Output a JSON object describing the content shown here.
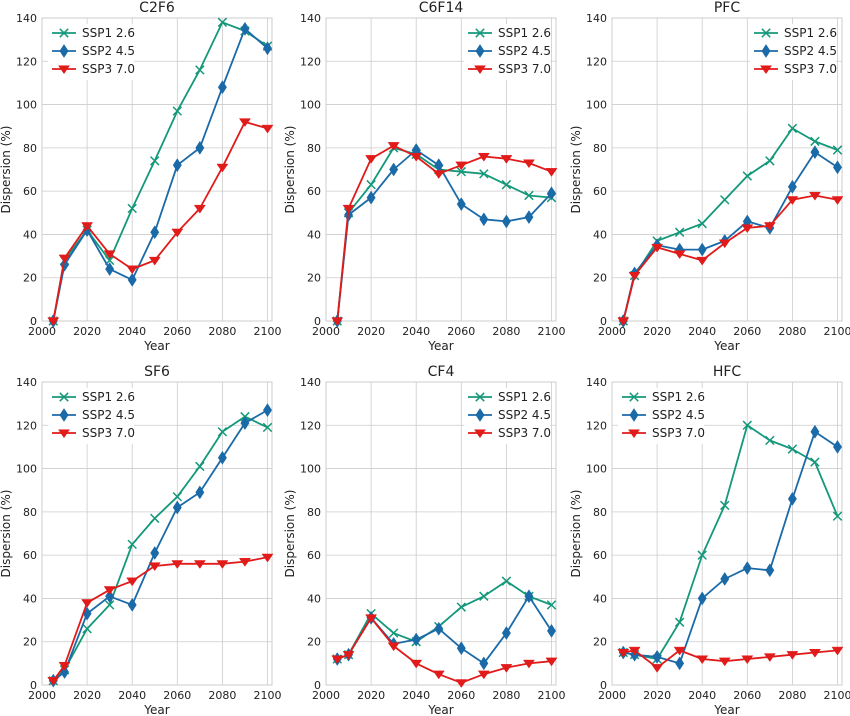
{
  "chart_data": [
    {
      "type": "line",
      "title": "C2F6",
      "xlabel": "Year",
      "ylabel": "Dispersion (%)",
      "xlim": [
        2000,
        2102
      ],
      "ylim": [
        0,
        140
      ],
      "xticks": [
        2000,
        2020,
        2040,
        2060,
        2080,
        2100
      ],
      "yticks": [
        0,
        20,
        40,
        60,
        80,
        100,
        120,
        140
      ],
      "grid": true,
      "legend": "top-left",
      "x": [
        2005,
        2010,
        2020,
        2030,
        2040,
        2050,
        2060,
        2070,
        2080,
        2090,
        2100
      ],
      "series": [
        {
          "name": "SSP1 2.6",
          "color": "#14987a",
          "marker": "x",
          "values": [
            0,
            28,
            42,
            28,
            52,
            74,
            97,
            116,
            138,
            134,
            127
          ]
        },
        {
          "name": "SSP2 4.5",
          "color": "#1b6aa8",
          "marker": "diamond",
          "values": [
            0,
            26,
            42,
            24,
            19,
            41,
            72,
            80,
            108,
            135,
            126
          ]
        },
        {
          "name": "SSP3 7.0",
          "color": "#e11a1a",
          "marker": "triangle-down",
          "values": [
            0,
            29,
            44,
            31,
            24,
            28,
            41,
            52,
            71,
            92,
            89
          ]
        }
      ]
    },
    {
      "type": "line",
      "title": "C6F14",
      "xlabel": "Year",
      "ylabel": "Dispersion (%)",
      "xlim": [
        2000,
        2102
      ],
      "ylim": [
        0,
        140
      ],
      "xticks": [
        2000,
        2020,
        2040,
        2060,
        2080,
        2100
      ],
      "yticks": [
        0,
        20,
        40,
        60,
        80,
        100,
        120,
        140
      ],
      "grid": true,
      "legend": "top-right",
      "x": [
        2005,
        2010,
        2020,
        2030,
        2040,
        2050,
        2060,
        2070,
        2080,
        2090,
        2100
      ],
      "series": [
        {
          "name": "SSP1 2.6",
          "color": "#14987a",
          "marker": "x",
          "values": [
            0,
            50,
            63,
            80,
            77,
            70,
            69,
            68,
            63,
            58,
            57
          ]
        },
        {
          "name": "SSP2 4.5",
          "color": "#1b6aa8",
          "marker": "diamond",
          "values": [
            0,
            49,
            57,
            70,
            79,
            72,
            54,
            47,
            46,
            48,
            59
          ]
        },
        {
          "name": "SSP3 7.0",
          "color": "#e11a1a",
          "marker": "triangle-down",
          "values": [
            0,
            52,
            75,
            81,
            76,
            68,
            72,
            76,
            75,
            73,
            69
          ]
        }
      ]
    },
    {
      "type": "line",
      "title": "PFC",
      "xlabel": "Year",
      "ylabel": "Dispersion (%)",
      "xlim": [
        2000,
        2102
      ],
      "ylim": [
        0,
        140
      ],
      "xticks": [
        2000,
        2020,
        2040,
        2060,
        2080,
        2100
      ],
      "yticks": [
        0,
        20,
        40,
        60,
        80,
        100,
        120,
        140
      ],
      "grid": true,
      "legend": "top-right",
      "x": [
        2005,
        2010,
        2020,
        2030,
        2040,
        2050,
        2060,
        2070,
        2080,
        2090,
        2100
      ],
      "series": [
        {
          "name": "SSP1 2.6",
          "color": "#14987a",
          "marker": "x",
          "values": [
            0,
            21,
            37,
            41,
            45,
            56,
            67,
            74,
            89,
            83,
            79
          ]
        },
        {
          "name": "SSP2 4.5",
          "color": "#1b6aa8",
          "marker": "diamond",
          "values": [
            0,
            22,
            35,
            33,
            33,
            37,
            46,
            43,
            62,
            78,
            71
          ]
        },
        {
          "name": "SSP3 7.0",
          "color": "#e11a1a",
          "marker": "triangle-down",
          "values": [
            0,
            21,
            34,
            31,
            28,
            36,
            43,
            44,
            56,
            58,
            56
          ]
        }
      ]
    },
    {
      "type": "line",
      "title": "SF6",
      "xlabel": "Year",
      "ylabel": "Dispersion (%)",
      "xlim": [
        2000,
        2102
      ],
      "ylim": [
        0,
        140
      ],
      "xticks": [
        2000,
        2020,
        2040,
        2060,
        2080,
        2100
      ],
      "yticks": [
        0,
        20,
        40,
        60,
        80,
        100,
        120,
        140
      ],
      "grid": true,
      "legend": "top-left",
      "x": [
        2005,
        2010,
        2020,
        2030,
        2040,
        2050,
        2060,
        2070,
        2080,
        2090,
        2100
      ],
      "series": [
        {
          "name": "SSP1 2.6",
          "color": "#14987a",
          "marker": "x",
          "values": [
            2,
            7,
            26,
            37,
            65,
            77,
            87,
            101,
            117,
            124,
            119
          ]
        },
        {
          "name": "SSP2 4.5",
          "color": "#1b6aa8",
          "marker": "diamond",
          "values": [
            2,
            6,
            33,
            41,
            37,
            61,
            82,
            89,
            105,
            121,
            127
          ]
        },
        {
          "name": "SSP3 7.0",
          "color": "#e11a1a",
          "marker": "triangle-down",
          "values": [
            2,
            9,
            38,
            44,
            48,
            55,
            56,
            56,
            56,
            57,
            59
          ]
        }
      ]
    },
    {
      "type": "line",
      "title": "CF4",
      "xlabel": "Year",
      "ylabel": "Dispersion (%)",
      "xlim": [
        2000,
        2102
      ],
      "ylim": [
        0,
        140
      ],
      "xticks": [
        2000,
        2020,
        2040,
        2060,
        2080,
        2100
      ],
      "yticks": [
        0,
        20,
        40,
        60,
        80,
        100,
        120,
        140
      ],
      "grid": true,
      "legend": "top-right",
      "x": [
        2005,
        2010,
        2020,
        2030,
        2040,
        2050,
        2060,
        2070,
        2080,
        2090,
        2100
      ],
      "series": [
        {
          "name": "SSP1 2.6",
          "color": "#14987a",
          "marker": "x",
          "values": [
            12,
            14,
            33,
            24,
            20,
            27,
            36,
            41,
            48,
            41,
            37
          ]
        },
        {
          "name": "SSP2 4.5",
          "color": "#1b6aa8",
          "marker": "diamond",
          "values": [
            12,
            14,
            31,
            19,
            21,
            26,
            17,
            10,
            24,
            41,
            25
          ]
        },
        {
          "name": "SSP3 7.0",
          "color": "#e11a1a",
          "marker": "triangle-down",
          "values": [
            12,
            14,
            31,
            18,
            10,
            5,
            1,
            5,
            8,
            10,
            11
          ]
        }
      ]
    },
    {
      "type": "line",
      "title": "HFC",
      "xlabel": "Year",
      "ylabel": "Dispersion (%)",
      "xlim": [
        2000,
        2102
      ],
      "ylim": [
        0,
        140
      ],
      "xticks": [
        2000,
        2020,
        2040,
        2060,
        2080,
        2100
      ],
      "yticks": [
        0,
        20,
        40,
        60,
        80,
        100,
        120,
        140
      ],
      "grid": true,
      "legend": "top-left",
      "x": [
        2005,
        2010,
        2020,
        2030,
        2040,
        2050,
        2060,
        2070,
        2080,
        2090,
        2100
      ],
      "series": [
        {
          "name": "SSP1 2.6",
          "color": "#14987a",
          "marker": "x",
          "values": [
            15,
            14,
            12,
            29,
            60,
            83,
            120,
            113,
            109,
            103,
            78
          ]
        },
        {
          "name": "SSP2 4.5",
          "color": "#1b6aa8",
          "marker": "diamond",
          "values": [
            15,
            14,
            13,
            10,
            40,
            49,
            54,
            53,
            86,
            117,
            110
          ]
        },
        {
          "name": "SSP3 7.0",
          "color": "#e11a1a",
          "marker": "triangle-down",
          "values": [
            15,
            16,
            8,
            16,
            12,
            11,
            12,
            13,
            14,
            15,
            16
          ]
        }
      ]
    }
  ]
}
